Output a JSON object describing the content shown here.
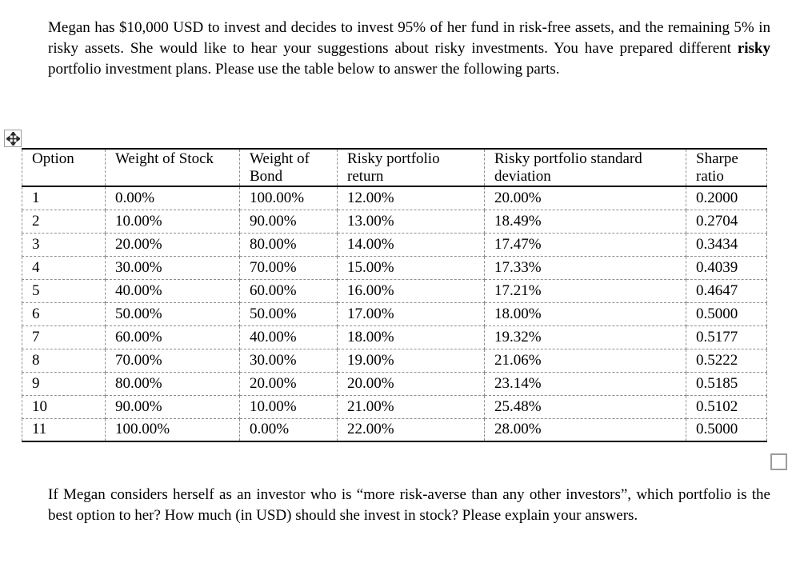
{
  "intro_paragraph": {
    "before_bold": "Megan has $10,000 USD to invest and decides to invest 95% of her fund in risk-free assets, and the remaining 5% in risky assets. She would like to hear your suggestions about risky investments. You have prepared different ",
    "bold_word": "risky",
    "after_bold": " portfolio investment plans. Please use the table below to answer the following parts."
  },
  "table": {
    "headers": [
      "Option",
      "Weight of Stock",
      "Weight of\nBond",
      "Risky portfolio\nreturn",
      "Risky portfolio standard\ndeviation",
      "Sharpe\nratio"
    ],
    "rows": [
      [
        "1",
        "0.00%",
        "100.00%",
        "12.00%",
        "20.00%",
        "0.2000"
      ],
      [
        "2",
        "10.00%",
        "90.00%",
        "13.00%",
        "18.49%",
        "0.2704"
      ],
      [
        "3",
        "20.00%",
        "80.00%",
        "14.00%",
        "17.47%",
        "0.3434"
      ],
      [
        "4",
        "30.00%",
        "70.00%",
        "15.00%",
        "17.33%",
        "0.4039"
      ],
      [
        "5",
        "40.00%",
        "60.00%",
        "16.00%",
        "17.21%",
        "0.4647"
      ],
      [
        "6",
        "50.00%",
        "50.00%",
        "17.00%",
        "18.00%",
        "0.5000"
      ],
      [
        "7",
        "60.00%",
        "40.00%",
        "18.00%",
        "19.32%",
        "0.5177"
      ],
      [
        "8",
        "70.00%",
        "30.00%",
        "19.00%",
        "21.06%",
        "0.5222"
      ],
      [
        "9",
        "80.00%",
        "20.00%",
        "20.00%",
        "23.14%",
        "0.5185"
      ],
      [
        "10",
        "90.00%",
        "10.00%",
        "21.00%",
        "25.48%",
        "0.5102"
      ],
      [
        "11",
        "100.00%",
        "0.00%",
        "22.00%",
        "28.00%",
        "0.5000"
      ]
    ]
  },
  "question_paragraph": "If Megan considers herself as an investor who is “more risk-averse than any other investors”, which portfolio is the best option to her? How much (in USD) should she invest in stock? Please explain your answers.",
  "icons": {
    "move_handle": "four-direction-move-arrow",
    "resize_handle": "square-resize-handle"
  },
  "colors": {
    "text": "#000000",
    "solid_border": "#000000",
    "dashed_border": "#8f8f8f",
    "handle_border": "#9e9e9e"
  }
}
